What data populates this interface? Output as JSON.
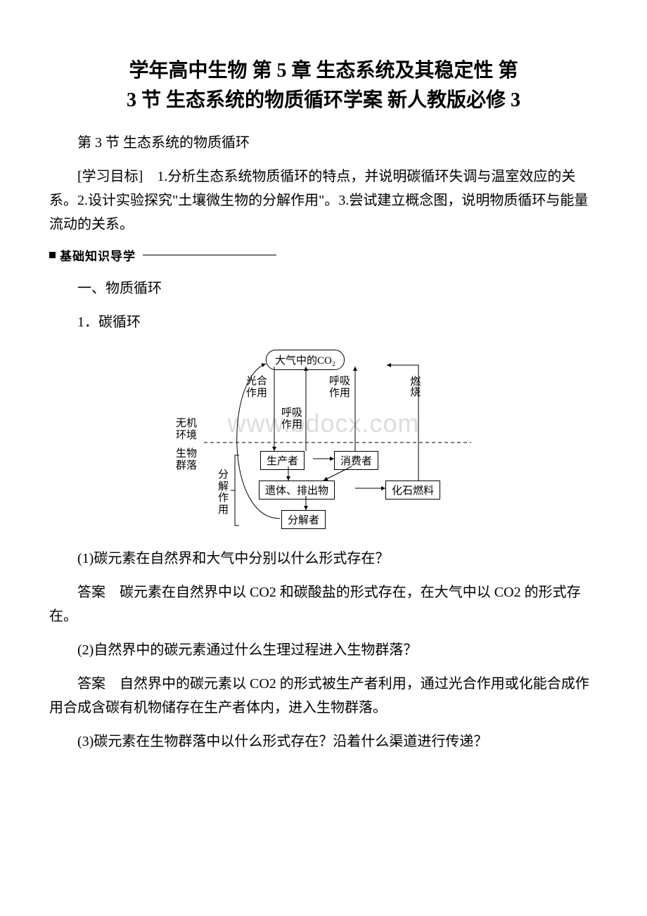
{
  "title_line1": "学年高中生物 第 5 章 生态系统及其稳定性 第",
  "title_line2": "3 节 生态系统的物质循环学案 新人教版必修 3",
  "p_section": "第 3 节 生态系统的物质循环",
  "p_goals": "[学习目标]　1.分析生态系统物质循环的特点，并说明碳循环失调与温室效应的关系。2.设计实验探究\"土壤微生物的分解作用\"。3.尝试建立概念图，说明物质循环与能量流动的关系。",
  "bar_label": "基础知识导学",
  "h_one": "一、物质循环",
  "h_carbon": "1．碳循环",
  "q1": "(1)碳元素在自然界和大气中分别以什么形式存在？",
  "a1": "答案　碳元素在自然界中以 CO2 和碳酸盐的形式存在，在大气中以 CO2 的形式存在。",
  "q2": "(2)自然界中的碳元素通过什么生理过程进入生物群落？",
  "a2": "答案　自然界中的碳元素以 CO2 的形式被生产者利用，通过光合作用或化能合成作用合成含碳有机物储存在生产者体内，进入生物群落。",
  "q3": "(3)碳元素在生物群落中以什么形式存在？沿着什么渠道进行传递？",
  "diagram": {
    "atmos_co2": "大气中的CO₂",
    "photosynthesis": "光合\n作用",
    "respiration": "呼吸\n作用",
    "respiration2": "呼吸\n作用",
    "combustion": "燃烧",
    "abiotic_env": "无机\n环境",
    "biotic_comm": "生物\n群落",
    "decompose": "分\n解\n作\n用",
    "producer": "生产者",
    "consumer": "消费者",
    "remains": "遗体、排出物",
    "fossil": "化石燃料",
    "decomposer": "分解者",
    "watermark": "www.bdocx.com",
    "colors": {
      "stroke": "#000000",
      "bg": "#ffffff",
      "wm": "#dddddd"
    }
  }
}
